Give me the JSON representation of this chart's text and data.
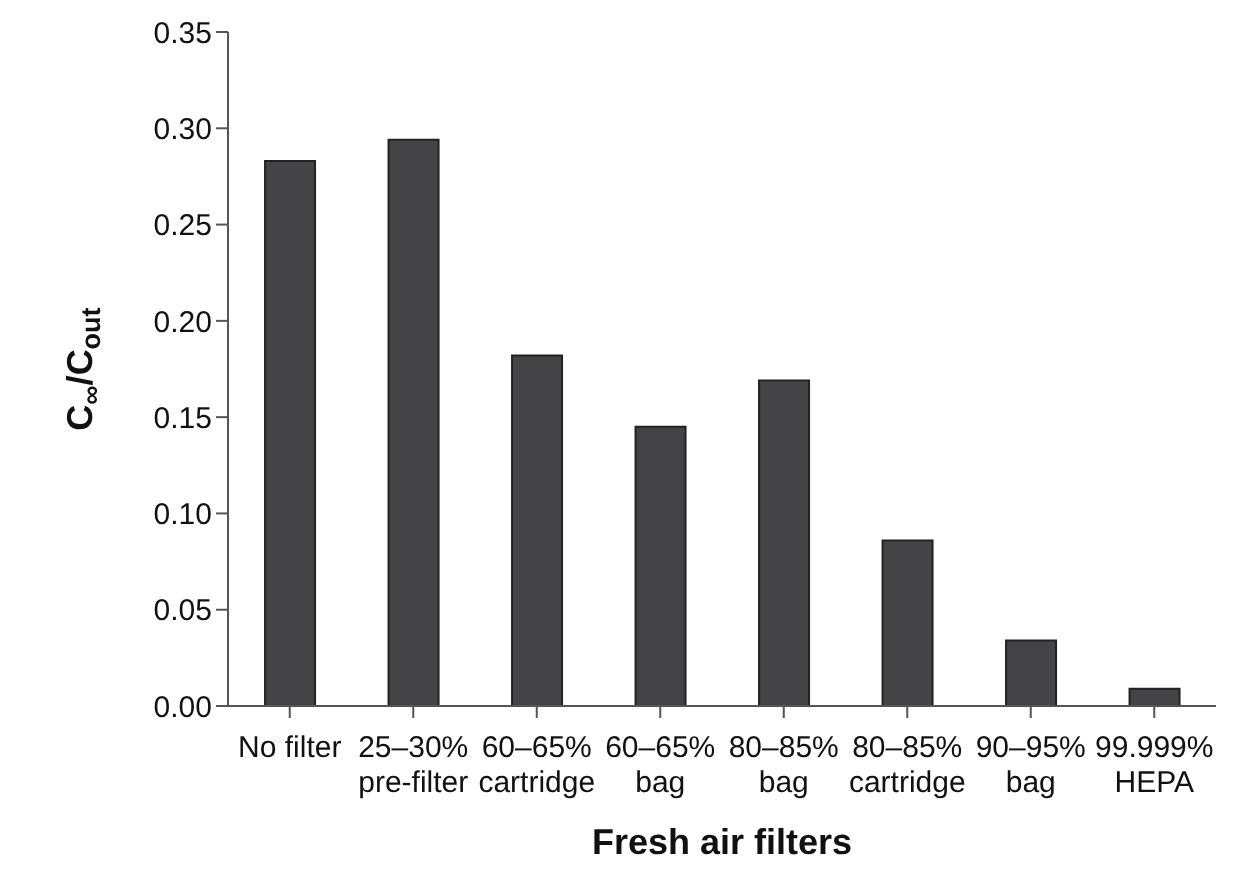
{
  "chart_data": {
    "type": "bar",
    "xlabel": "Fresh air filters",
    "ylabel": "C$_{∞}$/C$_{out}$",
    "categories": [
      "No filter",
      "25–30%\npre-filter",
      "60–65%\ncartridge",
      "60–65%\nbag",
      "80–85%\nbag",
      "80–85%\ncartridge",
      "90–95%\nbag",
      "99.999%\nHEPA"
    ],
    "values": [
      0.283,
      0.294,
      0.182,
      0.145,
      0.169,
      0.086,
      0.034,
      0.009
    ],
    "color": "#444446",
    "ylim": [
      0,
      0.35
    ],
    "yticks": [
      {
        "value": 0,
        "label": "0.00"
      },
      {
        "value": 0.05,
        "label": "0.05"
      },
      {
        "value": 0.1,
        "label": "0.10"
      },
      {
        "value": 0.15,
        "label": "0.15"
      },
      {
        "value": 0.2,
        "label": "0.20"
      },
      {
        "value": 0.25,
        "label": "0.25"
      },
      {
        "value": 0.3,
        "label": "0.30"
      },
      {
        "value": 0.35,
        "label": "0.35"
      }
    ],
    "grid": false,
    "legend": false
  }
}
